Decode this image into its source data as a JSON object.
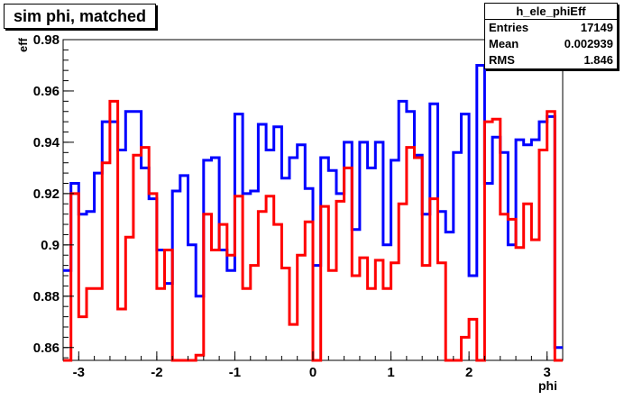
{
  "chart_data": {
    "type": "line",
    "title": "sim phi, matched",
    "xlabel": "phi",
    "ylabel": "eff",
    "xlim": [
      -3.2,
      3.2
    ],
    "ylim": [
      0.855,
      0.98
    ],
    "xticks": [
      -3,
      -2,
      -1,
      0,
      1,
      2,
      3
    ],
    "xtick_labels": [
      "-3",
      "-2",
      "-1",
      "0",
      "1",
      "2",
      "3"
    ],
    "yticks": [
      0.86,
      0.88,
      0.9,
      0.92,
      0.94,
      0.96,
      0.98
    ],
    "ytick_labels": [
      "0.86",
      "0.88",
      "0.9",
      "0.92",
      "0.94",
      "0.96",
      "0.98"
    ],
    "bin_edges": [
      -3.2,
      -3.1,
      -3.0,
      -2.9,
      -2.8,
      -2.7,
      -2.6,
      -2.5,
      -2.4,
      -2.3,
      -2.2,
      -2.1,
      -2.0,
      -1.9,
      -1.8,
      -1.7,
      -1.6,
      -1.5,
      -1.4,
      -1.3,
      -1.2,
      -1.1,
      -1.0,
      -0.9,
      -0.8,
      -0.7,
      -0.6,
      -0.5,
      -0.4,
      -0.3,
      -0.2,
      -0.1,
      0.0,
      0.1,
      0.2,
      0.3,
      0.4,
      0.5,
      0.6,
      0.7,
      0.8,
      0.9,
      1.0,
      1.1,
      1.2,
      1.3,
      1.4,
      1.5,
      1.6,
      1.7,
      1.8,
      1.9,
      2.0,
      2.1,
      2.2,
      2.3,
      2.4,
      2.5,
      2.6,
      2.7,
      2.8,
      2.9,
      3.0,
      3.1,
      3.2
    ],
    "series": [
      {
        "color": "#0000ff",
        "values": [
          0.89,
          0.924,
          0.912,
          0.913,
          0.928,
          0.948,
          0.948,
          0.937,
          0.952,
          0.952,
          0.93,
          0.918,
          0.898,
          0.885,
          0.921,
          0.927,
          0.9,
          0.88,
          0.933,
          0.934,
          0.898,
          0.89,
          0.951,
          0.92,
          0.921,
          0.947,
          0.937,
          0.946,
          0.926,
          0.934,
          0.939,
          0.922,
          0.892,
          0.934,
          0.929,
          0.92,
          0.94,
          0.906,
          0.94,
          0.93,
          0.94,
          0.9,
          0.933,
          0.956,
          0.952,
          0.935,
          0.912,
          0.955,
          0.913,
          0.905,
          0.936,
          0.951,
          0.888,
          0.97,
          0.924,
          0.942,
          0.936,
          0.9,
          0.941,
          0.939,
          0.941,
          0.948,
          0.95,
          0.86
        ]
      },
      {
        "color": "#ff0000",
        "values": [
          0.855,
          0.92,
          0.872,
          0.883,
          0.883,
          0.932,
          0.956,
          0.875,
          0.903,
          0.935,
          0.938,
          0.92,
          0.883,
          0.898,
          0.855,
          0.855,
          0.855,
          0.857,
          0.912,
          0.898,
          0.908,
          0.896,
          0.919,
          0.883,
          0.892,
          0.913,
          0.919,
          0.908,
          0.891,
          0.869,
          0.896,
          0.909,
          0.855,
          0.915,
          0.89,
          0.917,
          0.93,
          0.888,
          0.895,
          0.883,
          0.894,
          0.883,
          0.893,
          0.916,
          0.938,
          0.934,
          0.892,
          0.918,
          0.893,
          0.855,
          0.855,
          0.864,
          0.871,
          0.855,
          0.948,
          0.949,
          0.912,
          0.91,
          0.899,
          0.916,
          0.902,
          0.937,
          0.952,
          0.855
        ]
      }
    ],
    "legend": "none",
    "grid": false
  },
  "stats": {
    "name": "h_ele_phiEff",
    "rows": [
      {
        "label": "Entries",
        "value": "17149"
      },
      {
        "label": "Mean",
        "value": "0.002939"
      },
      {
        "label": "RMS",
        "value": "1.846"
      }
    ]
  }
}
